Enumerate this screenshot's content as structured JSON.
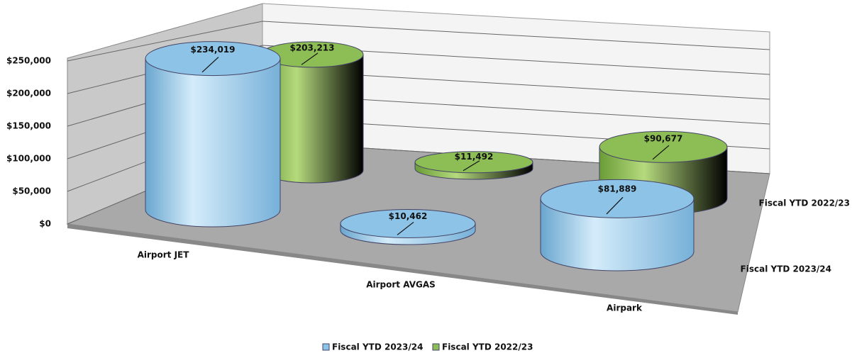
{
  "chart_data": {
    "type": "cylinder3d",
    "categories": [
      "Airport JET",
      "Airport AVGAS",
      "Airpark"
    ],
    "series": [
      {
        "name": "Fiscal YTD 2023/24",
        "color": "#8cc3e6",
        "values": [
          234019,
          10462,
          81889
        ],
        "value_labels": [
          "$234,019",
          "$10,462",
          "$81,889"
        ]
      },
      {
        "name": "Fiscal YTD 2022/23",
        "color": "#8dbd55",
        "values": [
          203213,
          11492,
          90677
        ],
        "value_labels": [
          "$203,213",
          "$11,492",
          "$90,677"
        ]
      }
    ],
    "ylim": [
      0,
      250000
    ],
    "yticks": [
      {
        "value": 0,
        "label": "$0"
      },
      {
        "value": 50000,
        "label": "$50,000"
      },
      {
        "value": 100000,
        "label": "$100,000"
      },
      {
        "value": 150000,
        "label": "$150,000"
      },
      {
        "value": 200000,
        "label": "$200,000"
      },
      {
        "value": 250000,
        "label": "$250,000"
      }
    ],
    "grid": true,
    "legend": "bottom"
  }
}
